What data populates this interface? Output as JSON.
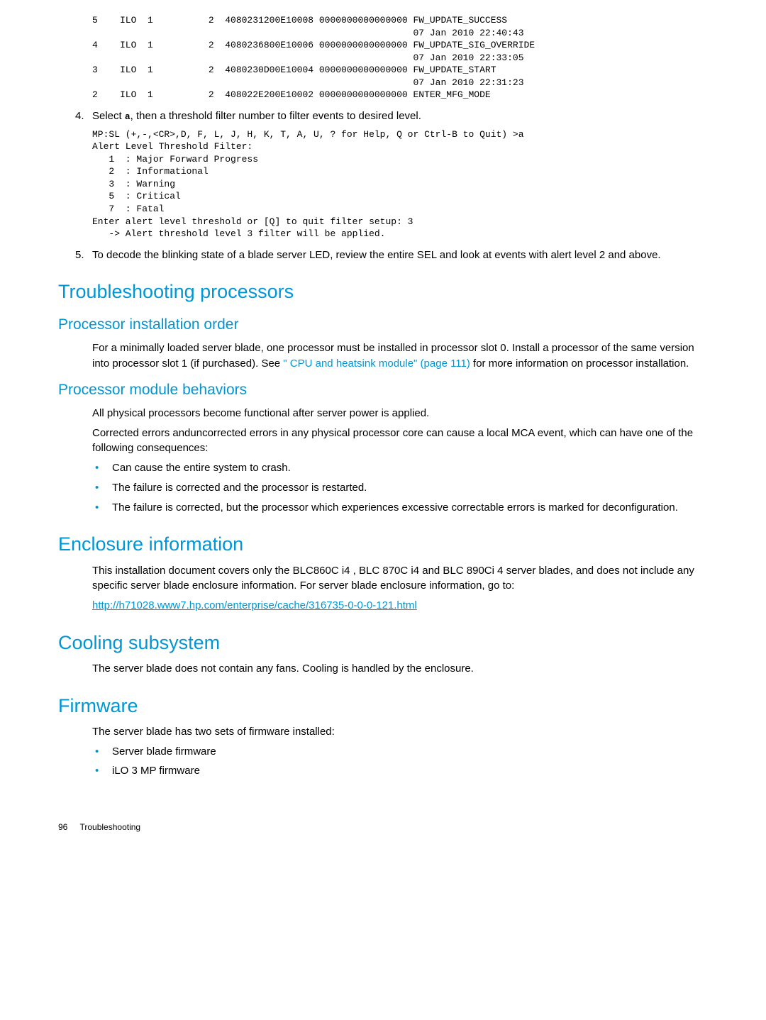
{
  "colors": {
    "accent": "#0096d6",
    "text": "#000000",
    "background": "#ffffff"
  },
  "typography": {
    "body_font": "Arial",
    "mono_font": "Courier New",
    "body_size_pt": 11,
    "h1_size_pt": 20,
    "h2_size_pt": 16,
    "code_size_pt": 10
  },
  "code_block_top": "5    ILO  1          2  4080231200E10008 0000000000000000 FW_UPDATE_SUCCESS\n                                                          07 Jan 2010 22:40:43\n4    ILO  1          2  4080236800E10006 0000000000000000 FW_UPDATE_SIG_OVERRIDE\n                                                          07 Jan 2010 22:33:05\n3    ILO  1          2  4080230D00E10004 0000000000000000 FW_UPDATE_START\n                                                          07 Jan 2010 22:31:23\n2    ILO  1          2  408022E200E10002 0000000000000000 ENTER_MFG_MODE",
  "steps": {
    "s4_num": "4.",
    "s4_pre": "Select ",
    "s4_key": "a",
    "s4_post": ", then a threshold filter number to filter events to desired level.",
    "s5_num": "5.",
    "s5_text": "To decode the blinking state of a blade server LED, review the entire SEL and look at events with alert level 2 and above."
  },
  "code_block_mid": "MP:SL (+,-,<CR>,D, F, L, J, H, K, T, A, U, ? for Help, Q or Ctrl-B to Quit) >a\nAlert Level Threshold Filter:\n   1  : Major Forward Progress\n   2  : Informational\n   3  : Warning\n   5  : Critical\n   7  : Fatal\nEnter alert level threshold or [Q] to quit filter setup: 3\n   -> Alert threshold level 3 filter will be applied.",
  "sections": {
    "trouble_proc": "Troubleshooting processors",
    "proc_install": "Processor installation order",
    "proc_install_body_pre": "For a minimally loaded server blade, one processor must be installed in processor slot 0. Install a processor of the same version into processor slot 1 (if purchased). See ",
    "proc_install_link": "\" CPU and heatsink module\" (page 111)",
    "proc_install_body_post": " for more information on processor installation.",
    "proc_behaviors": "Processor module behaviors",
    "proc_behaviors_p1": "All physical processors become functional after server power is applied.",
    "proc_behaviors_p2": "Corrected errors anduncorrected errors in any physical processor core can cause a local MCA event, which can have one of the following consequences:",
    "proc_b1": "Can cause the entire system to crash.",
    "proc_b2": "The failure is corrected and the processor is restarted.",
    "proc_b3": "The failure is corrected, but the processor which experiences excessive correctable errors is marked for deconfiguration.",
    "enclosure": "Enclosure information",
    "enclosure_body": "This installation document covers only the BLC860C i4 , BLC 870C i4 and BLC 890Ci 4 server blades, and does not include any specific server blade enclosure information. For server blade enclosure information, go to:",
    "enclosure_link": "http://h71028.www7.hp.com/enterprise/cache/316735-0-0-0-121.html",
    "cooling": "Cooling subsystem",
    "cooling_body": "The server blade does not contain any fans. Cooling is handled by the enclosure.",
    "firmware": "Firmware",
    "firmware_body": "The server blade has two sets of firmware installed:",
    "firmware_b1": "Server blade firmware",
    "firmware_b2": "iLO 3 MP firmware"
  },
  "footer": {
    "page_num": "96",
    "chapter": "Troubleshooting"
  }
}
